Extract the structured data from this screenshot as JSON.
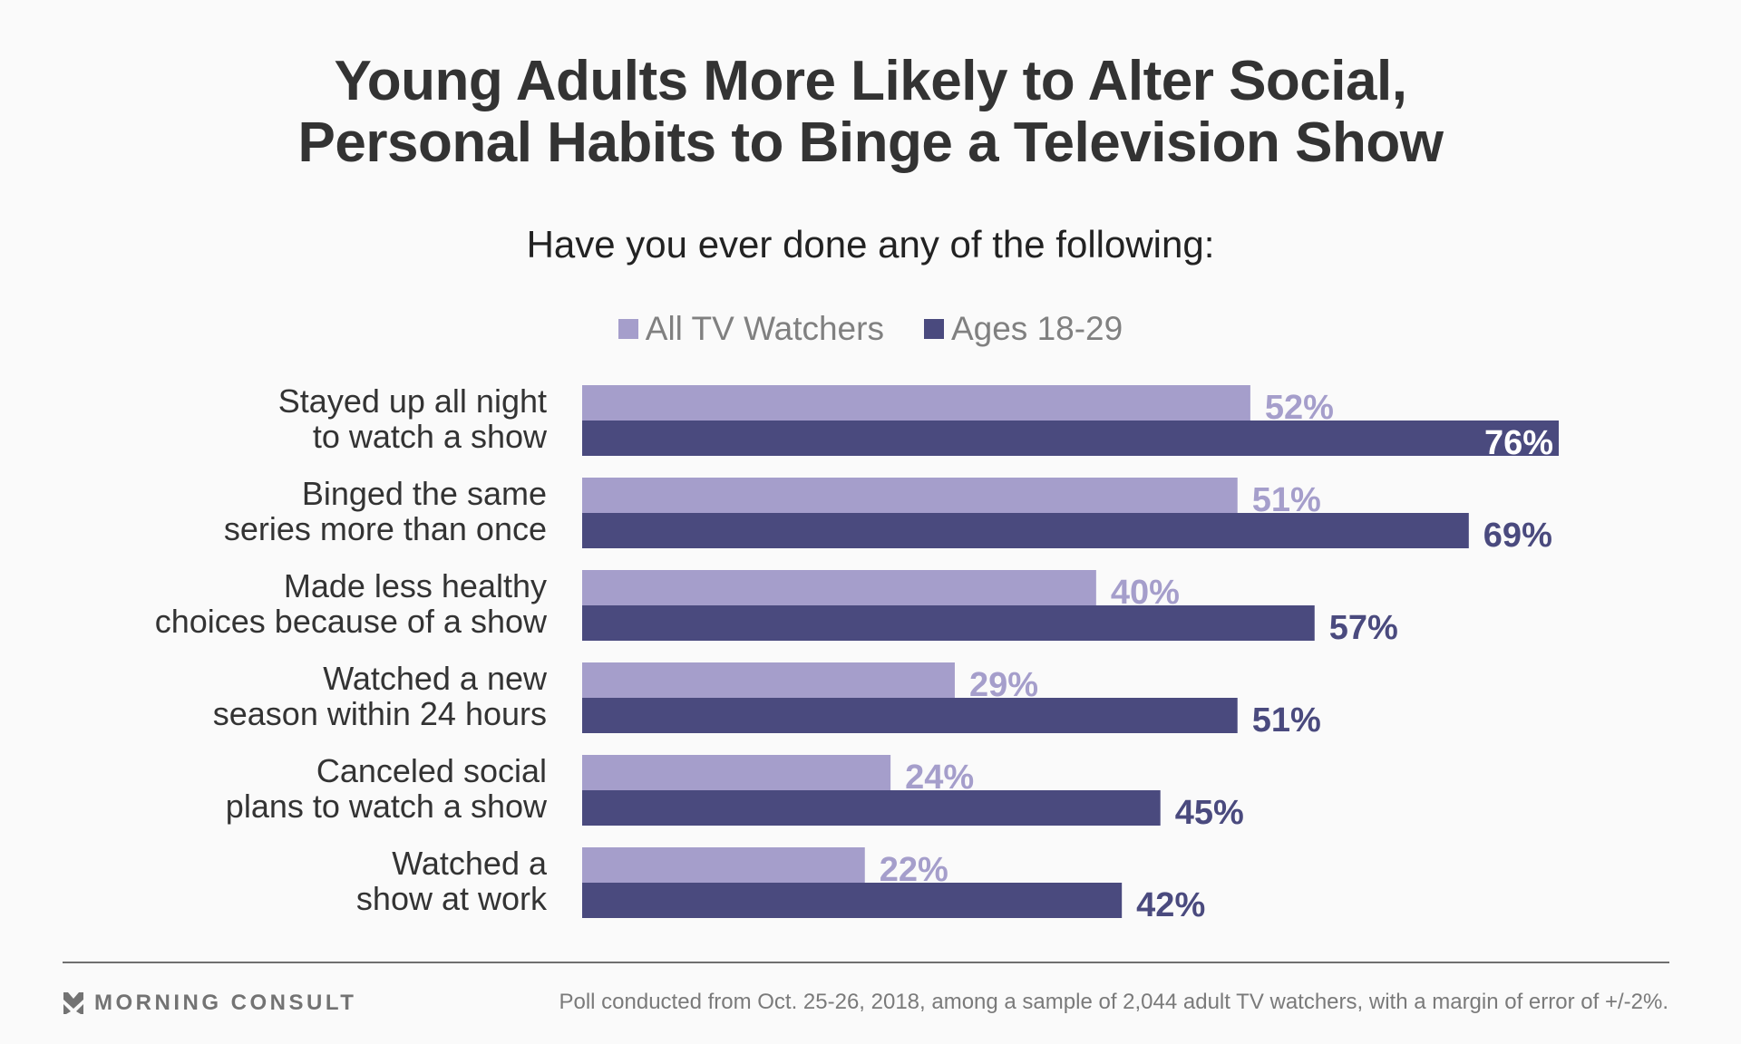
{
  "title": {
    "line1": "Young Adults More Likely to Alter Social,",
    "line2": "Personal Habits to Binge a Television Show"
  },
  "subtitle": "Have you ever done any of the following:",
  "colors": {
    "all": "#a59ecb",
    "young": "#4a4a7e",
    "text": "#333333",
    "inside_label": "#ffffff"
  },
  "chart_data": {
    "type": "bar",
    "orientation": "horizontal",
    "title": "Young Adults More Likely to Alter Social, Personal Habits to Binge a Television Show",
    "subtitle": "Have you ever done any of the following:",
    "xlabel": "",
    "ylabel": "",
    "xlim": [
      0,
      76
    ],
    "grid": false,
    "legend_position": "top-center",
    "value_suffix": "%",
    "categories": [
      [
        "Stayed up all night",
        "to watch a show"
      ],
      [
        "Binged the same",
        "series more than once"
      ],
      [
        "Made less healthy",
        "choices because of a show"
      ],
      [
        "Watched a new",
        "season within 24 hours"
      ],
      [
        "Canceled social",
        "plans to watch a show"
      ],
      [
        "Watched a",
        "show at work"
      ]
    ],
    "series": [
      {
        "name": "All TV Watchers",
        "color": "#a59ecb",
        "values": [
          52,
          51,
          40,
          29,
          24,
          22
        ]
      },
      {
        "name": "Ages 18-29",
        "color": "#4a4a7e",
        "values": [
          76,
          69,
          57,
          51,
          45,
          42
        ]
      }
    ]
  },
  "legend": [
    {
      "label": "All TV Watchers",
      "color": "#a59ecb"
    },
    {
      "label": "Ages 18-29",
      "color": "#4a4a7e"
    }
  ],
  "footer": {
    "brand": "MORNING CONSULT",
    "brand_icon": "morning-consult-chevron-logo",
    "note": "Poll conducted from Oct. 25-26, 2018, among a sample of 2,044 adult TV watchers, with a margin of error of +/-2%."
  }
}
